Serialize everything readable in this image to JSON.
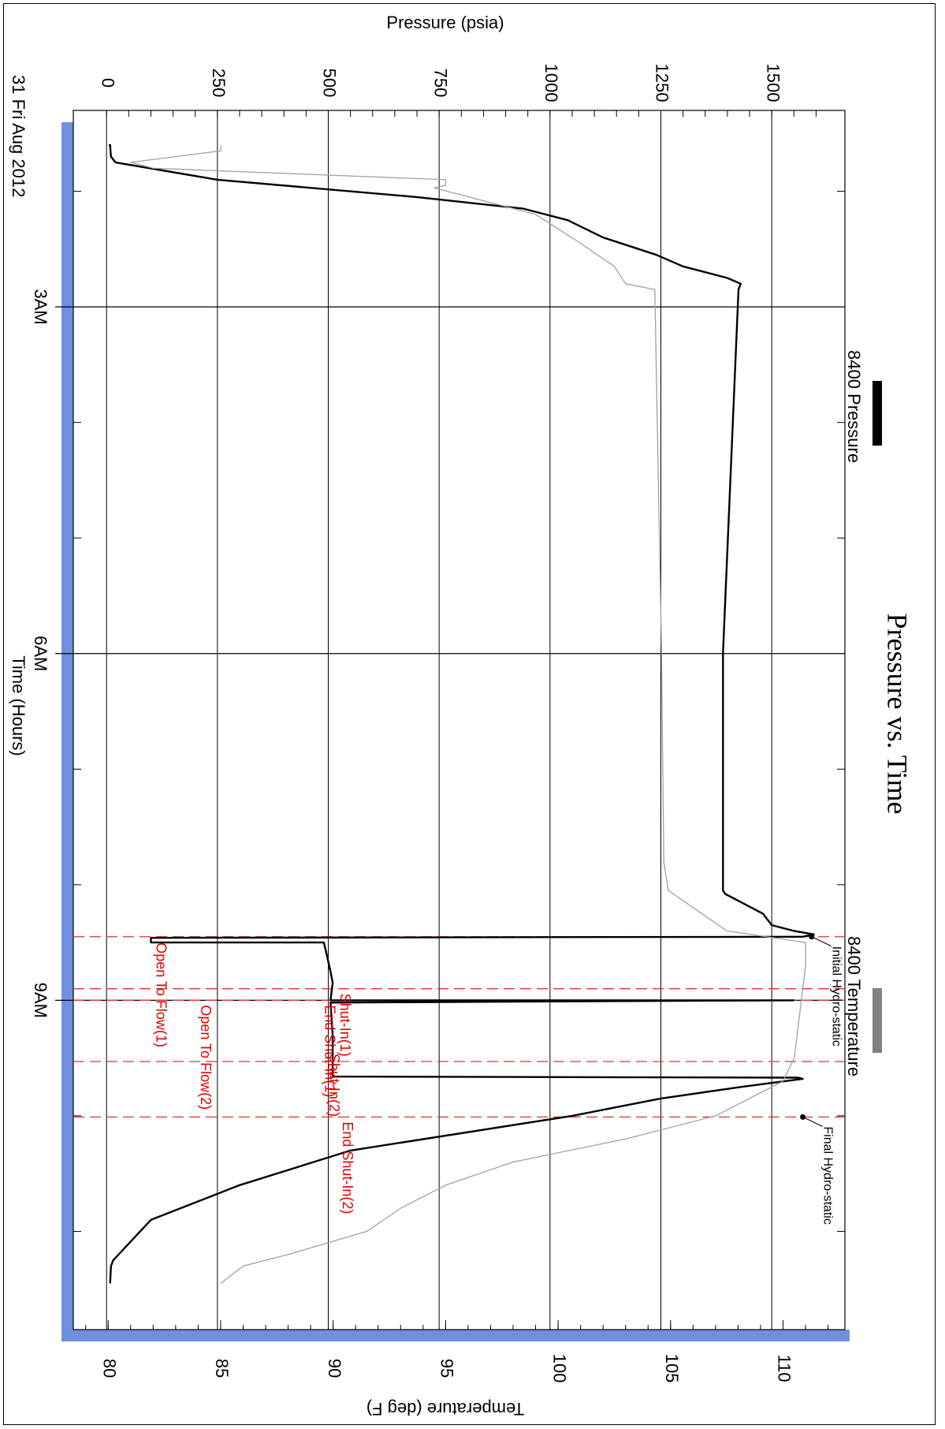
{
  "chart_data": {
    "type": "line",
    "title": "Pressure vs. Time",
    "date_label": "31 Fri Aug 2012",
    "xlabel": "Time (Hours)",
    "y1label": "Pressure (psia)",
    "y2label": "Temperature (deg F)",
    "x_ticks": [
      "3AM",
      "6AM",
      "9AM"
    ],
    "x_tick_hours": [
      3,
      6,
      9
    ],
    "x_range_hours": [
      1.3,
      11.85
    ],
    "y1_ticks": [
      "0",
      "250",
      "500",
      "750",
      "1000",
      "1250",
      "1500"
    ],
    "y1_tick_values": [
      0,
      250,
      500,
      750,
      1000,
      1250,
      1500
    ],
    "y1lim": [
      -75,
      1665
    ],
    "y2_ticks": [
      "80",
      "85",
      "90",
      "95",
      "100",
      "105",
      "110"
    ],
    "y2_tick_values": [
      80,
      85,
      90,
      95,
      100,
      105,
      110
    ],
    "y2lim": [
      78.45,
      112.75
    ],
    "grid": true,
    "legend": [
      {
        "name": "8400 Pressure",
        "color": "#000000"
      },
      {
        "name": "8400 Temperature",
        "color": "#808080"
      }
    ],
    "series": [
      {
        "name": "8400 Pressure",
        "axis": "pressure",
        "color": "#000000",
        "points": [
          [
            1.6,
            5
          ],
          [
            1.6,
            8
          ],
          [
            1.7,
            10
          ],
          [
            1.75,
            20
          ],
          [
            1.9,
            250
          ],
          [
            2.05,
            700
          ],
          [
            2.15,
            940
          ],
          [
            2.25,
            1040
          ],
          [
            2.4,
            1120
          ],
          [
            2.55,
            1240
          ],
          [
            2.65,
            1300
          ],
          [
            2.75,
            1400
          ],
          [
            2.8,
            1430
          ],
          [
            2.85,
            1425
          ],
          [
            6.0,
            1390
          ],
          [
            8.05,
            1390
          ],
          [
            8.08,
            1395
          ],
          [
            8.25,
            1480
          ],
          [
            8.35,
            1500
          ],
          [
            8.4,
            1550
          ],
          [
            8.43,
            1595
          ],
          [
            8.45,
            1570
          ],
          [
            8.46,
            100
          ],
          [
            8.5,
            100
          ],
          [
            8.5,
            490
          ],
          [
            8.58,
            495
          ],
          [
            8.75,
            505
          ],
          [
            8.85,
            510
          ],
          [
            9.0,
            505
          ],
          [
            9.0,
            1550
          ],
          [
            9.02,
            505
          ],
          [
            9.3,
            510
          ],
          [
            9.65,
            510
          ],
          [
            9.66,
            515
          ],
          [
            9.67,
            1560
          ],
          [
            9.68,
            1570
          ],
          [
            9.75,
            1430
          ],
          [
            9.85,
            1250
          ],
          [
            10.0,
            1050
          ],
          [
            10.3,
            550
          ],
          [
            10.6,
            300
          ],
          [
            10.9,
            100
          ],
          [
            11.25,
            15
          ],
          [
            11.3,
            10
          ],
          [
            11.45,
            8
          ]
        ]
      },
      {
        "name": "8400 Temperature",
        "axis": "temperature",
        "color": "#a0a0a0",
        "points": [
          [
            1.6,
            85
          ],
          [
            1.65,
            85
          ],
          [
            1.75,
            81
          ],
          [
            1.8,
            82
          ],
          [
            1.9,
            95
          ],
          [
            1.95,
            95
          ],
          [
            1.97,
            94.5
          ],
          [
            2.2,
            99
          ],
          [
            2.45,
            101
          ],
          [
            2.65,
            102.5
          ],
          [
            2.8,
            103
          ],
          [
            2.85,
            104.3
          ],
          [
            6.0,
            104.6
          ],
          [
            7.8,
            104.7
          ],
          [
            8.05,
            104.9
          ],
          [
            8.4,
            107.5
          ],
          [
            8.5,
            111
          ],
          [
            8.7,
            111
          ],
          [
            9.5,
            110.5
          ],
          [
            9.7,
            110
          ],
          [
            9.8,
            109
          ],
          [
            10.0,
            107
          ],
          [
            10.2,
            103
          ],
          [
            10.4,
            98
          ],
          [
            10.6,
            95
          ],
          [
            10.8,
            93
          ],
          [
            11.0,
            91.5
          ],
          [
            11.2,
            88
          ],
          [
            11.3,
            86
          ],
          [
            11.45,
            85
          ]
        ]
      }
    ],
    "event_hours": [
      8.45,
      8.9,
      9.0,
      9.53,
      10.01
    ],
    "events": [
      {
        "label": "Initial Hydro-static",
        "hours": 8.45,
        "pressure": 1590,
        "color": "#000000"
      },
      {
        "label": "Final Hydro-static",
        "hours": 10.01,
        "pressure": 1570,
        "color": "#000000"
      },
      {
        "label": "Open To Flow(1)",
        "hours": 8.46,
        "pressure": 100,
        "color": "#e00000"
      },
      {
        "label": "Shut-In(1)",
        "hours": 8.9,
        "pressure": 515,
        "color": "#e00000"
      },
      {
        "label": "Open To Flow(2)",
        "hours": 9.0,
        "pressure": 200,
        "color": "#e00000"
      },
      {
        "label": "End Shut-In(1)",
        "hours": 9.0,
        "pressure": 480,
        "color": "#e00000"
      },
      {
        "label": "Shut-In(2)",
        "hours": 9.42,
        "pressure": 490,
        "color": "#e00000"
      },
      {
        "label": "End Shut-In(2)",
        "hours": 10.01,
        "pressure": 520,
        "color": "#e00000"
      }
    ]
  }
}
